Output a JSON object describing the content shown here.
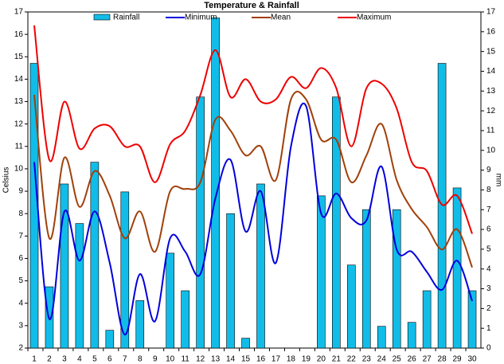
{
  "chart_data": {
    "type": "bar-line",
    "title": "Temperature & Rainfall",
    "y_label": "Celsius",
    "y2_label": "mm",
    "categories": [
      "1",
      "2",
      "3",
      "4",
      "5",
      "6",
      "7",
      "8",
      "9",
      "10",
      "11",
      "12",
      "13",
      "14",
      "15",
      "16",
      "17",
      "18",
      "19",
      "20",
      "21",
      "22",
      "23",
      "24",
      "25",
      "26",
      "27",
      "28",
      "29",
      "30"
    ],
    "ylim": [
      2,
      17
    ],
    "yticks": [
      2,
      3,
      4,
      5,
      6,
      7,
      8,
      9,
      10,
      11,
      12,
      13,
      14,
      15,
      16,
      17
    ],
    "y2lim": [
      0,
      17
    ],
    "y2ticks": [
      0,
      1,
      2,
      3,
      4,
      5,
      6,
      7,
      8,
      9,
      10,
      11,
      12,
      13,
      14,
      15,
      16,
      17
    ],
    "series": [
      {
        "name": "Rainfall",
        "type": "bar",
        "axis": "y2",
        "color": "#11bde8",
        "values": [
          14.4,
          3.1,
          8.3,
          6.3,
          9.4,
          0.9,
          7.9,
          2.4,
          0,
          4.8,
          2.9,
          12.7,
          16.7,
          6.8,
          0.5,
          8.3,
          0,
          0,
          0,
          7.7,
          12.7,
          4.2,
          7.0,
          1.1,
          7.0,
          1.3,
          2.9,
          14.4,
          8.1,
          2.9
        ]
      },
      {
        "name": "Minimum",
        "type": "line",
        "color": "#0000dd",
        "values": [
          10.3,
          3.3,
          8.1,
          5.9,
          8.1,
          5.8,
          2.6,
          5.3,
          3.2,
          6.9,
          6.3,
          5.3,
          8.7,
          10.4,
          7.2,
          9.0,
          5.8,
          11.0,
          12.8,
          8.0,
          8.9,
          7.8,
          7.7,
          10.1,
          6.4,
          6.3,
          5.4,
          4.6,
          5.9,
          4.1
        ]
      },
      {
        "name": "Mean",
        "type": "line",
        "color": "#a0400a",
        "values": [
          13.3,
          6.9,
          10.5,
          8.3,
          9.9,
          8.8,
          6.9,
          8.1,
          6.3,
          9.0,
          9.1,
          9.4,
          12.2,
          11.7,
          10.6,
          11.0,
          9.5,
          13.1,
          13.1,
          11.3,
          11.3,
          9.4,
          10.6,
          12.0,
          9.5,
          8.2,
          7.4,
          6.4,
          7.3,
          5.6
        ]
      },
      {
        "name": "Maximum",
        "type": "line",
        "color": "#ee0000",
        "values": [
          16.4,
          10.4,
          13.0,
          10.9,
          11.8,
          11.9,
          11.0,
          11.0,
          9.4,
          11.1,
          11.7,
          13.3,
          15.3,
          13.2,
          14.0,
          13.0,
          13.1,
          14.1,
          13.6,
          14.5,
          13.6,
          11.0,
          13.6,
          13.8,
          12.7,
          10.3,
          9.9,
          8.4,
          8.8,
          7.1
        ]
      }
    ]
  }
}
